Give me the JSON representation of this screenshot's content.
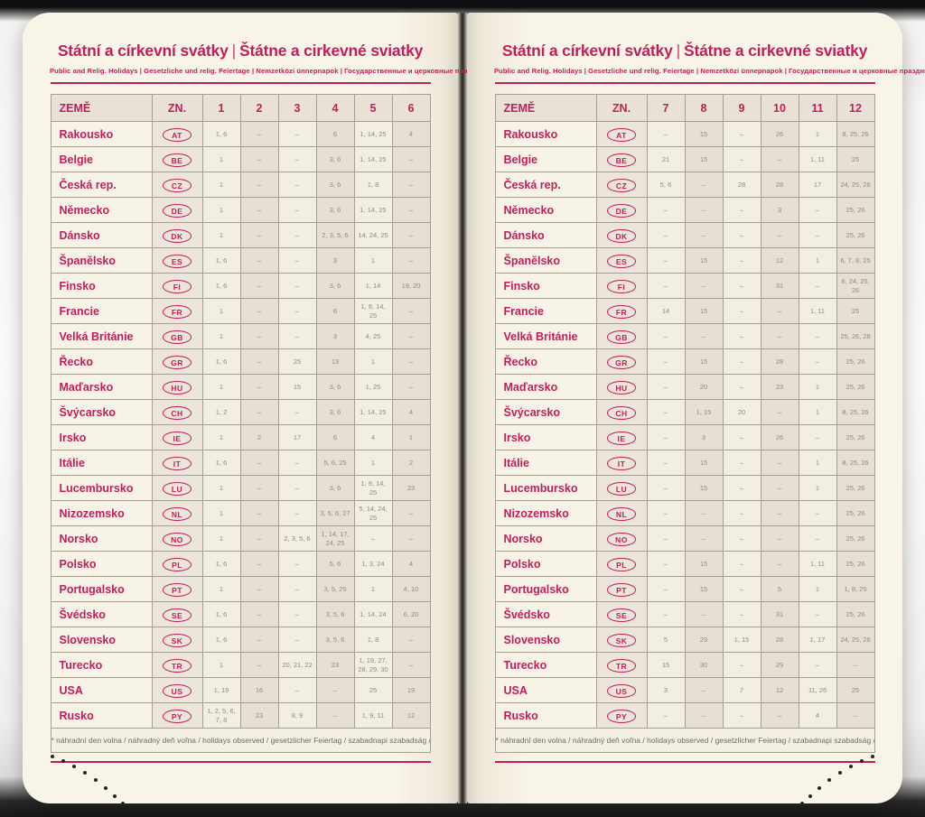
{
  "colors": {
    "accent": "#c01f5b",
    "page_bg": "#f9f4e8",
    "cell_text": "#8f8a83"
  },
  "header": {
    "title_cz": "Státní a církevní svátky",
    "separator": "|",
    "title_sk": "Štátne a cirkevné sviatky",
    "subtitle": "Public and Relig. Holidays | Gesetzliche und relig. Feiertage | Nemzetközi ünnepnapok | Государственные и церковные праздники"
  },
  "table_labels": {
    "country_header": "ZEMĚ",
    "code_header": "ZN."
  },
  "footnote": "* náhradní den volna / náhradný deň voľna / holidays observed / gesetzlicher Feiertag / szabadnapi szabadság / выходной день",
  "pages": [
    {
      "side": "left",
      "months": [
        "1",
        "2",
        "3",
        "4",
        "5",
        "6"
      ],
      "rows": [
        {
          "country": "Rakousko",
          "code": "AT",
          "values": [
            "1, 6",
            "–",
            "–",
            "6",
            "1, 14, 25",
            "4"
          ]
        },
        {
          "country": "Belgie",
          "code": "BE",
          "values": [
            "1",
            "–",
            "–",
            "3, 6",
            "1, 14, 25",
            "–"
          ]
        },
        {
          "country": "Česká rep.",
          "code": "CZ",
          "values": [
            "1",
            "–",
            "–",
            "3, 6",
            "1, 8",
            "–"
          ]
        },
        {
          "country": "Německo",
          "code": "DE",
          "values": [
            "1",
            "–",
            "–",
            "3, 6",
            "1, 14, 25",
            "–"
          ]
        },
        {
          "country": "Dánsko",
          "code": "DK",
          "values": [
            "1",
            "–",
            "–",
            "2, 3, 5, 6",
            "14, 24, 25",
            "–"
          ]
        },
        {
          "country": "Španělsko",
          "code": "ES",
          "values": [
            "1, 6",
            "–",
            "–",
            "3",
            "1",
            "–"
          ]
        },
        {
          "country": "Finsko",
          "code": "FI",
          "values": [
            "1, 6",
            "–",
            "–",
            "3, 6",
            "1, 14",
            "19, 20"
          ]
        },
        {
          "country": "Francie",
          "code": "FR",
          "values": [
            "1",
            "–",
            "–",
            "6",
            "1, 8, 14, 25",
            "–"
          ]
        },
        {
          "country": "Velká Británie",
          "code": "GB",
          "values": [
            "1",
            "–",
            "–",
            "3",
            "4, 25",
            "–"
          ]
        },
        {
          "country": "Řecko",
          "code": "GR",
          "values": [
            "1, 6",
            "–",
            "25",
            "13",
            "1",
            "–"
          ]
        },
        {
          "country": "Maďarsko",
          "code": "HU",
          "values": [
            "1",
            "–",
            "15",
            "3, 6",
            "1, 25",
            "–"
          ]
        },
        {
          "country": "Švýcarsko",
          "code": "CH",
          "values": [
            "1, 2",
            "–",
            "–",
            "3, 6",
            "1, 14, 25",
            "4"
          ]
        },
        {
          "country": "Irsko",
          "code": "IE",
          "values": [
            "1",
            "2",
            "17",
            "6",
            "4",
            "1"
          ]
        },
        {
          "country": "Itálie",
          "code": "IT",
          "values": [
            "1, 6",
            "–",
            "–",
            "5, 6, 25",
            "1",
            "2"
          ]
        },
        {
          "country": "Lucembursko",
          "code": "LU",
          "values": [
            "1",
            "–",
            "–",
            "3, 6",
            "1, 9, 14, 25",
            "23"
          ]
        },
        {
          "country": "Nizozemsko",
          "code": "NL",
          "values": [
            "1",
            "–",
            "–",
            "3, 5, 6, 27",
            "5, 14, 24, 25",
            "–"
          ]
        },
        {
          "country": "Norsko",
          "code": "NO",
          "values": [
            "1",
            "–",
            "2, 3, 5, 6",
            "1, 14, 17, 24, 25",
            "–",
            "–"
          ]
        },
        {
          "country": "Polsko",
          "code": "PL",
          "values": [
            "1, 6",
            "–",
            "–",
            "5, 6",
            "1, 3, 24",
            "4"
          ]
        },
        {
          "country": "Portugalsko",
          "code": "PT",
          "values": [
            "1",
            "–",
            "–",
            "3, 5, 25",
            "1",
            "4, 10"
          ]
        },
        {
          "country": "Švédsko",
          "code": "SE",
          "values": [
            "1, 6",
            "–",
            "–",
            "3, 5, 6",
            "1, 14, 24",
            "6, 20"
          ]
        },
        {
          "country": "Slovensko",
          "code": "SK",
          "values": [
            "1, 6",
            "–",
            "–",
            "3, 5, 6",
            "1, 8",
            "–"
          ]
        },
        {
          "country": "Turecko",
          "code": "TR",
          "values": [
            "1",
            "–",
            "20, 21, 22",
            "23",
            "1, 19, 27, 28, 29, 30",
            "–"
          ]
        },
        {
          "country": "USA",
          "code": "US",
          "values": [
            "1, 19",
            "16",
            "–",
            "–",
            "25",
            "19"
          ]
        },
        {
          "country": "Rusko",
          "code": "PY",
          "values": [
            "1, 2, 5, 6, 7, 8",
            "23",
            "8, 9",
            "–",
            "1, 9, 11",
            "12"
          ]
        }
      ]
    },
    {
      "side": "right",
      "months": [
        "7",
        "8",
        "9",
        "10",
        "11",
        "12"
      ],
      "rows": [
        {
          "country": "Rakousko",
          "code": "AT",
          "values": [
            "–",
            "15",
            "–",
            "26",
            "1",
            "8, 25, 26"
          ]
        },
        {
          "country": "Belgie",
          "code": "BE",
          "values": [
            "21",
            "15",
            "–",
            "–",
            "1, 11",
            "25"
          ]
        },
        {
          "country": "Česká rep.",
          "code": "CZ",
          "values": [
            "5, 6",
            "–",
            "28",
            "28",
            "17",
            "24, 25, 26"
          ]
        },
        {
          "country": "Německo",
          "code": "DE",
          "values": [
            "–",
            "–",
            "–",
            "3",
            "–",
            "25, 26"
          ]
        },
        {
          "country": "Dánsko",
          "code": "DK",
          "values": [
            "–",
            "–",
            "–",
            "–",
            "–",
            "25, 26"
          ]
        },
        {
          "country": "Španělsko",
          "code": "ES",
          "values": [
            "–",
            "15",
            "–",
            "12",
            "1",
            "6, 7, 8, 25"
          ]
        },
        {
          "country": "Finsko",
          "code": "FI",
          "values": [
            "–",
            "–",
            "–",
            "31",
            "–",
            "6, 24, 25, 26"
          ]
        },
        {
          "country": "Francie",
          "code": "FR",
          "values": [
            "14",
            "15",
            "–",
            "–",
            "1, 11",
            "25"
          ]
        },
        {
          "country": "Velká Británie",
          "code": "GB",
          "values": [
            "–",
            "–",
            "–",
            "–",
            "–",
            "25, 26, 28"
          ]
        },
        {
          "country": "Řecko",
          "code": "GR",
          "values": [
            "–",
            "15",
            "–",
            "28",
            "–",
            "25, 26"
          ]
        },
        {
          "country": "Maďarsko",
          "code": "HU",
          "values": [
            "–",
            "20",
            "–",
            "23",
            "1",
            "25, 26"
          ]
        },
        {
          "country": "Švýcarsko",
          "code": "CH",
          "values": [
            "–",
            "1, 15",
            "20",
            "–",
            "1",
            "8, 25, 26"
          ]
        },
        {
          "country": "Irsko",
          "code": "IE",
          "values": [
            "–",
            "3",
            "–",
            "26",
            "–",
            "25, 26"
          ]
        },
        {
          "country": "Itálie",
          "code": "IT",
          "values": [
            "–",
            "15",
            "–",
            "–",
            "1",
            "8, 25, 26"
          ]
        },
        {
          "country": "Lucembursko",
          "code": "LU",
          "values": [
            "–",
            "15",
            "–",
            "–",
            "1",
            "25, 26"
          ]
        },
        {
          "country": "Nizozemsko",
          "code": "NL",
          "values": [
            "–",
            "–",
            "–",
            "–",
            "–",
            "25, 26"
          ]
        },
        {
          "country": "Norsko",
          "code": "NO",
          "values": [
            "–",
            "–",
            "–",
            "–",
            "–",
            "25, 26"
          ]
        },
        {
          "country": "Polsko",
          "code": "PL",
          "values": [
            "–",
            "15",
            "–",
            "–",
            "1, 11",
            "25, 26"
          ]
        },
        {
          "country": "Portugalsko",
          "code": "PT",
          "values": [
            "–",
            "15",
            "–",
            "5",
            "1",
            "1, 8, 25"
          ]
        },
        {
          "country": "Švédsko",
          "code": "SE",
          "values": [
            "–",
            "–",
            "–",
            "31",
            "–",
            "25, 26"
          ]
        },
        {
          "country": "Slovensko",
          "code": "SK",
          "values": [
            "5",
            "29",
            "1, 15",
            "28",
            "1, 17",
            "24, 25, 26"
          ]
        },
        {
          "country": "Turecko",
          "code": "TR",
          "values": [
            "15",
            "30",
            "–",
            "29",
            "–",
            "–"
          ]
        },
        {
          "country": "USA",
          "code": "US",
          "values": [
            "3",
            "–",
            "7",
            "12",
            "11, 26",
            "25"
          ]
        },
        {
          "country": "Rusko",
          "code": "PY",
          "values": [
            "–",
            "–",
            "–",
            "–",
            "4",
            "–"
          ]
        }
      ]
    }
  ]
}
